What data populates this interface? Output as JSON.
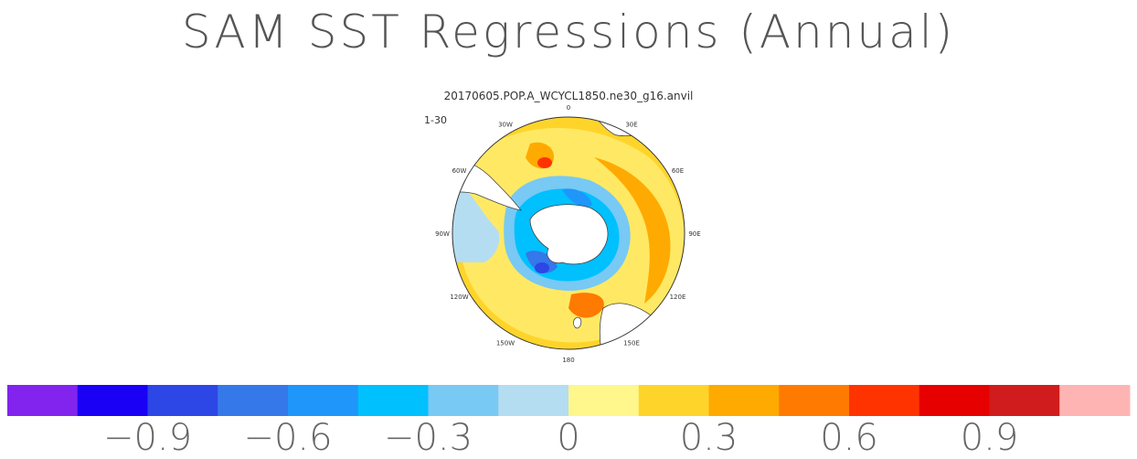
{
  "title": "SAM SST Regressions (Annual)",
  "chart_data": {
    "type": "heatmap",
    "projection": "south polar stereographic",
    "title": "SAM SST Regressions (Annual)",
    "subtitle": "20170605.POP.A_WCYCL1850.ne30_g16.anvil",
    "period_label": "1-30",
    "longitude_labels": [
      "0",
      "30E",
      "60E",
      "90E",
      "120E",
      "150E",
      "180",
      "150W",
      "120W",
      "90W",
      "60W",
      "30W"
    ],
    "colorbar": {
      "bins": [
        {
          "lower": null,
          "upper": -1.05,
          "color": "#8223ee"
        },
        {
          "lower": -1.05,
          "upper": -0.9,
          "color": "#1a00f5"
        },
        {
          "lower": -0.9,
          "upper": -0.75,
          "color": "#2d46e6"
        },
        {
          "lower": -0.75,
          "upper": -0.6,
          "color": "#3478ea"
        },
        {
          "lower": -0.6,
          "upper": -0.45,
          "color": "#1e96fa"
        },
        {
          "lower": -0.45,
          "upper": -0.3,
          "color": "#00c0fe"
        },
        {
          "lower": -0.3,
          "upper": -0.15,
          "color": "#78c9f4"
        },
        {
          "lower": -0.15,
          "upper": 0.0,
          "color": "#b4ddf1"
        },
        {
          "lower": 0.0,
          "upper": 0.15,
          "color": "#fff68c"
        },
        {
          "lower": 0.15,
          "upper": 0.3,
          "color": "#ffd42a"
        },
        {
          "lower": 0.3,
          "upper": 0.45,
          "color": "#ffaa00"
        },
        {
          "lower": 0.45,
          "upper": 0.6,
          "color": "#ff7a00"
        },
        {
          "lower": 0.6,
          "upper": 0.75,
          "color": "#ff3300"
        },
        {
          "lower": 0.75,
          "upper": 0.9,
          "color": "#e60000"
        },
        {
          "lower": 0.9,
          "upper": 1.05,
          "color": "#d01c1c"
        },
        {
          "lower": 1.05,
          "upper": null,
          "color": "#ffb4b4"
        }
      ],
      "tick_values": [
        -0.9,
        -0.6,
        -0.3,
        0,
        0.3,
        0.6,
        0.9
      ],
      "tick_labels": [
        "−0.9",
        "−0.6",
        "−0.3",
        "0",
        "0.3",
        "0.6",
        "0.9"
      ]
    }
  }
}
